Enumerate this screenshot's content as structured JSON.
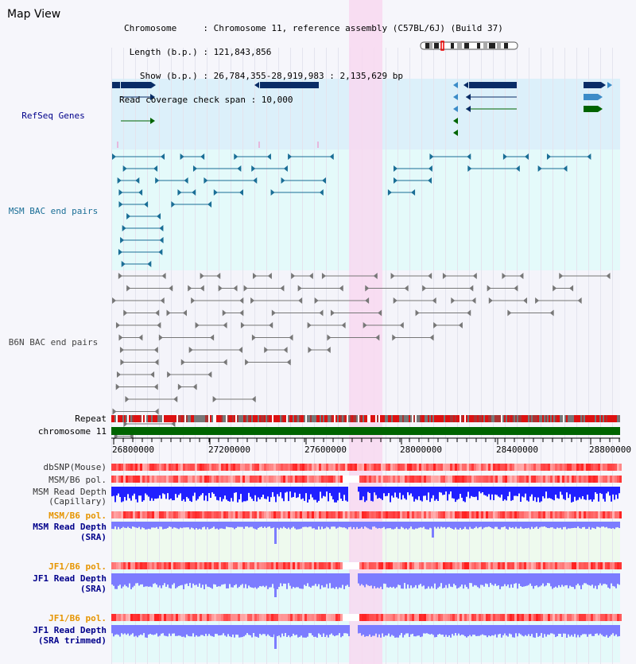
{
  "title": "Map View",
  "info": {
    "chromosome": "Chromosome     : Chromosome 11, reference assembly (C57BL/6J) (Build 37)",
    "length": " Length (b.p.) : 121,843,856",
    "show": "   Show (b.p.) : 26,784,355-28,919,983 : 2,135,629 bp",
    "span": "Read coverage check span : 10,000"
  },
  "tracks": {
    "refseq": "RefSeq Genes",
    "msm_bac": "MSM BAC end pairs",
    "b6n_bac": "B6N BAC end pairs",
    "repeat": "Repeat",
    "chromosome": "chromosome 11",
    "dbsnp": "dbSNP(Mouse)",
    "msm_b6_pol_1": "MSM/B6 pol.",
    "msm_depth_cap_1": "MSM Read Depth",
    "msm_depth_cap_2": "(Capillary)",
    "msm_b6_pol_2": "MSM/B6 pol.",
    "msm_depth_sra_1": "MSM Read Depth",
    "msm_depth_sra_2": "(SRA)",
    "jf1_b6_pol_1": "JF1/B6 pol.",
    "jf1_depth_sra_1": "JF1 Read Depth",
    "jf1_depth_sra_2": "(SRA)",
    "jf1_b6_pol_2": "JF1/B6 pol.",
    "jf1_depth_trim_1": "JF1 Read Depth",
    "jf1_depth_trim_2": "(SRA trimmed)"
  },
  "axis": {
    "ticks": [
      "26800000",
      "27200000",
      "27600000",
      "28000000",
      "28400000",
      "28800000"
    ]
  },
  "colors": {
    "refseq_bg": "#dcf0fa",
    "msm_bg": "#e4fafa",
    "highlight": "#f8d8f0",
    "gene_dark": "#0a2c66",
    "gene_mid": "#3c8cc8",
    "gene_green": "#006400",
    "msm_pair": "#1a6e96",
    "b6n_pair": "#777777",
    "chrom_bar": "#006400",
    "pol_red": "#ff3030",
    "depth_blue": "#2020ff",
    "depth_soft": "#7c7cff",
    "label_blue": "#00008b",
    "label_orange": "#e69500"
  }
}
